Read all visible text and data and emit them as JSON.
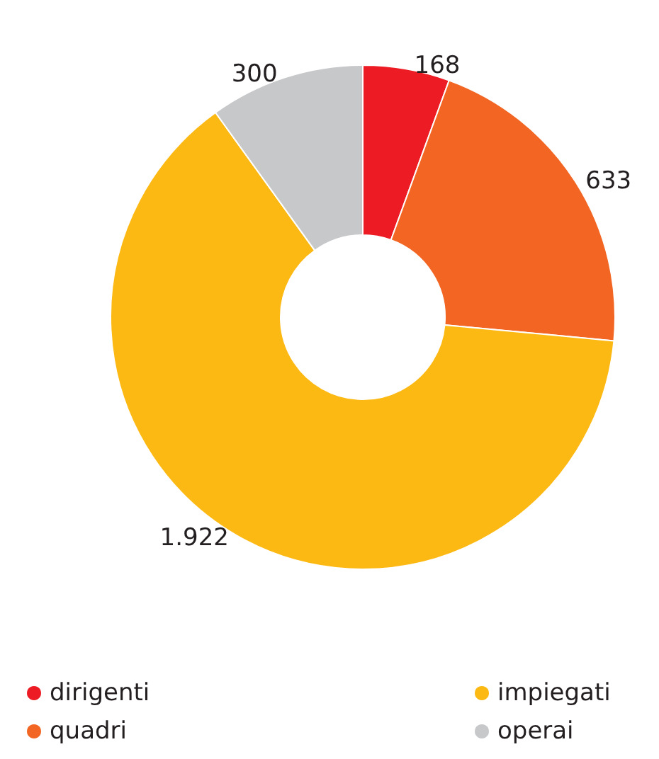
{
  "chart_data": {
    "type": "donut",
    "categories": [
      "dirigenti",
      "quadri",
      "impiegati",
      "operai"
    ],
    "values": [
      168,
      633,
      1922,
      300
    ],
    "value_labels": [
      "168",
      "633",
      "1.922",
      "300"
    ],
    "colors": [
      "#ed1c24",
      "#f26522",
      "#fdb913",
      "#c7c8ca"
    ],
    "legend": "bottom"
  }
}
